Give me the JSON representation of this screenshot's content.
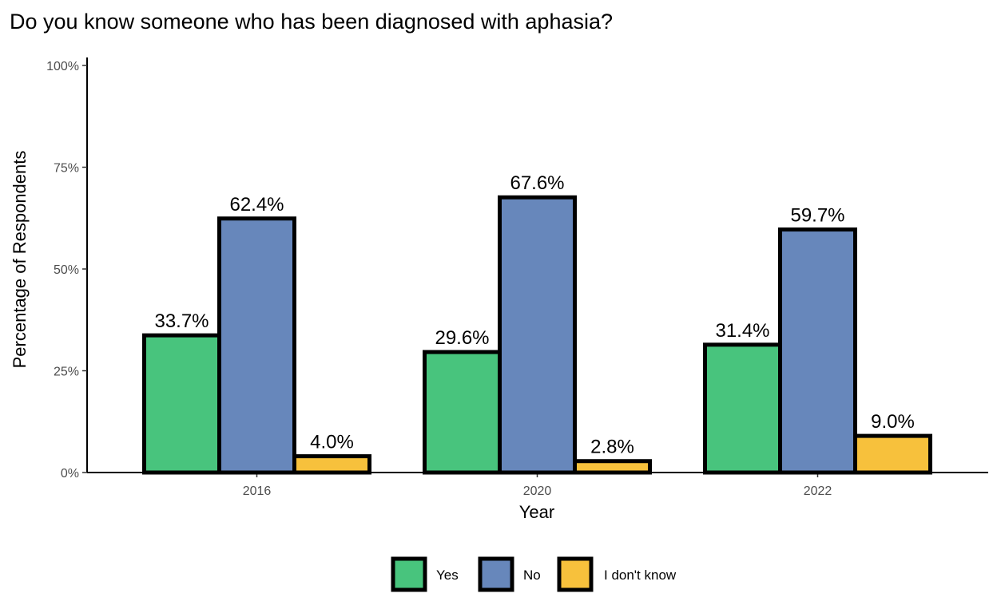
{
  "chart_data": {
    "type": "bar",
    "title": "Do you know someone who has been diagnosed with aphasia?",
    "xlabel": "Year",
    "ylabel": "Percentage of Respondents",
    "categories": [
      "2016",
      "2020",
      "2022"
    ],
    "series": [
      {
        "name": "Yes",
        "color": "#48c47d",
        "values": [
          33.7,
          29.6,
          31.4
        ],
        "labels": [
          "33.7%",
          "29.6%",
          "31.4%"
        ]
      },
      {
        "name": "No",
        "color": "#6787bb",
        "values": [
          62.4,
          67.6,
          59.7
        ],
        "labels": [
          "62.4%",
          "67.6%",
          "59.7%"
        ]
      },
      {
        "name": "I don't know",
        "color": "#f7c13c",
        "values": [
          4.0,
          2.8,
          9.0
        ],
        "labels": [
          "4.0%",
          "2.8%",
          "9.0%"
        ]
      }
    ],
    "ylim": [
      0,
      100
    ],
    "yticks": [
      0,
      25,
      50,
      75,
      100
    ],
    "ytick_labels": [
      "0%",
      "25%",
      "50%",
      "75%",
      "100%"
    ],
    "grid": false,
    "legend_position": "bottom"
  }
}
